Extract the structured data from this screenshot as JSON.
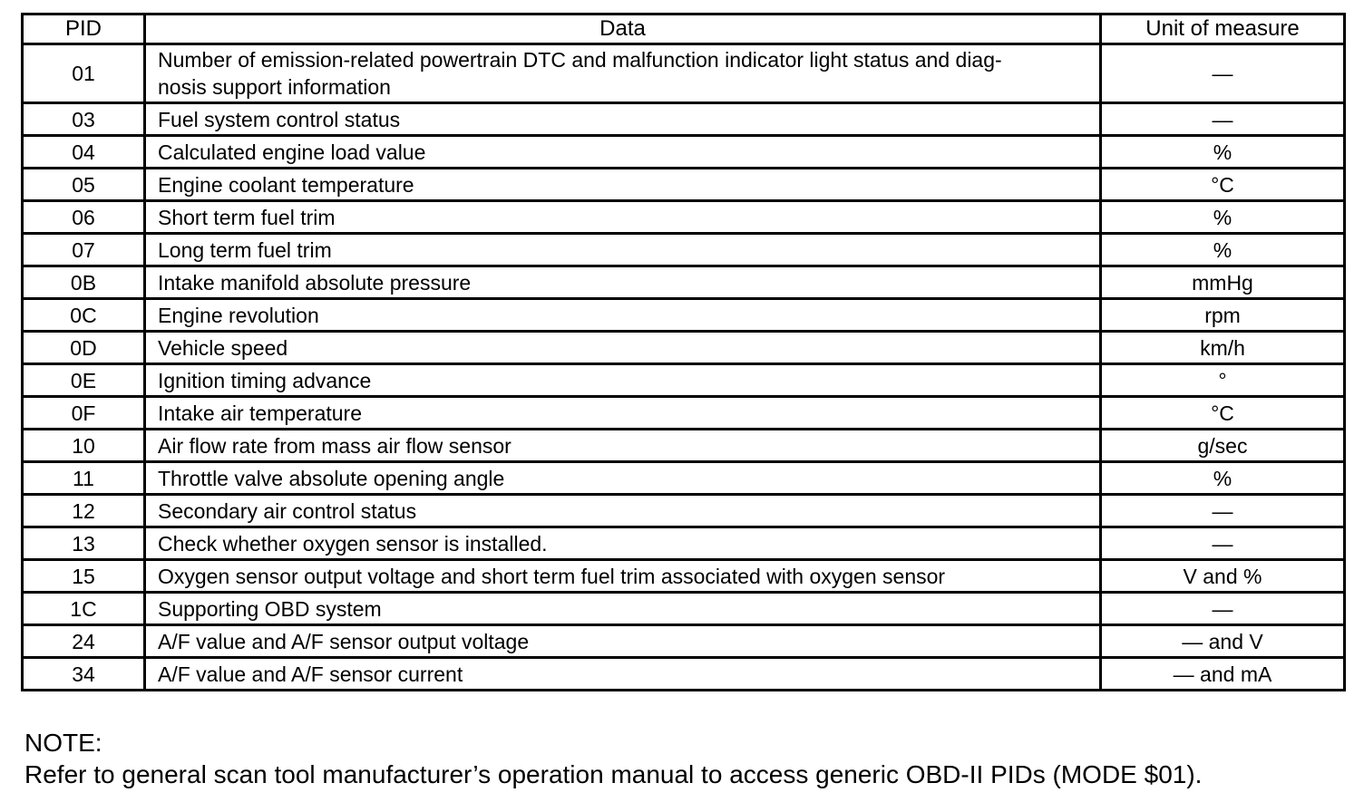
{
  "table": {
    "columns": {
      "pid": "PID",
      "data": "Data",
      "unit": "Unit of measure"
    },
    "rows": [
      {
        "pid": "01",
        "data": "Number of emission-related powertrain DTC and malfunction indicator light status and diag-\nnosis support information",
        "unit": "—"
      },
      {
        "pid": "03",
        "data": "Fuel system control status",
        "unit": "—"
      },
      {
        "pid": "04",
        "data": "Calculated engine load value",
        "unit": "%"
      },
      {
        "pid": "05",
        "data": "Engine coolant temperature",
        "unit": "°C"
      },
      {
        "pid": "06",
        "data": "Short term fuel trim",
        "unit": "%"
      },
      {
        "pid": "07",
        "data": "Long term fuel trim",
        "unit": "%"
      },
      {
        "pid": "0B",
        "data": "Intake manifold absolute pressure",
        "unit": "mmHg"
      },
      {
        "pid": "0C",
        "data": "Engine revolution",
        "unit": "rpm"
      },
      {
        "pid": "0D",
        "data": "Vehicle speed",
        "unit": "km/h"
      },
      {
        "pid": "0E",
        "data": "Ignition timing advance",
        "unit": "°"
      },
      {
        "pid": "0F",
        "data": "Intake air temperature",
        "unit": "°C"
      },
      {
        "pid": "10",
        "data": "Air flow rate from mass air flow sensor",
        "unit": "g/sec"
      },
      {
        "pid": "11",
        "data": "Throttle valve absolute opening angle",
        "unit": "%"
      },
      {
        "pid": "12",
        "data": "Secondary air control status",
        "unit": "—"
      },
      {
        "pid": "13",
        "data": "Check whether oxygen sensor is installed.",
        "unit": "—"
      },
      {
        "pid": "15",
        "data": "Oxygen sensor output voltage and short term fuel trim associated with oxygen sensor",
        "unit": "V and %"
      },
      {
        "pid": "1C",
        "data": "Supporting OBD system",
        "unit": "—"
      },
      {
        "pid": "24",
        "data": "A/F value and A/F sensor output voltage",
        "unit": "— and V"
      },
      {
        "pid": "34",
        "data": "A/F value and A/F sensor current",
        "unit": "— and mA"
      }
    ]
  },
  "note": {
    "label": "NOTE:",
    "text": "Refer to general scan tool manufacturer’s operation manual to access generic OBD-II PIDs (MODE $01)."
  },
  "colors": {
    "page_background": "#ffffff",
    "text": "#000000",
    "table_border": "#000000"
  }
}
